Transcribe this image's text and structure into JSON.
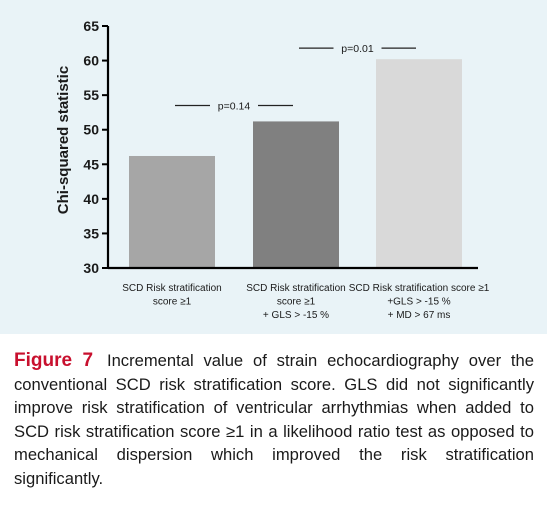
{
  "chart_data": {
    "type": "bar",
    "ylabel": "Chi-squared statistic",
    "xlabel": "",
    "ylim": [
      30,
      65
    ],
    "yticks": [
      30,
      35,
      40,
      45,
      50,
      55,
      60,
      65
    ],
    "grid": false,
    "categories": [
      [
        "SCD Risk stratification",
        "score ≥1"
      ],
      [
        "SCD Risk stratification",
        "score ≥1",
        "+ GLS > -15 %"
      ],
      [
        "SCD Risk stratification score ≥1",
        "+GLS > -15 %",
        "+ MD > 67 ms"
      ]
    ],
    "values": [
      46.2,
      51.2,
      60.2
    ],
    "bar_colors": [
      "#a6a6a6",
      "#808080",
      "#d9d9d9"
    ],
    "annotations": [
      {
        "text": "p=0.14",
        "from": 0,
        "to": 1,
        "y": 53.5
      },
      {
        "text": "p=0.01",
        "from": 1,
        "to": 2,
        "y": 61.8
      }
    ]
  },
  "caption": {
    "label": "Figure 7",
    "text": "Incremental value of strain echocardiography over the conventional SCD risk stratification score. GLS did not significantly improve risk stratification of ventricular arrhythmias when added to SCD risk stratification score ≥1 in a likelihood ratio test as opposed to mechanical dispersion which improved the risk stratification significantly."
  },
  "colors": {
    "panel_background": "#e9f3f7",
    "figure_label": "#c8102e",
    "axis": "#000000"
  }
}
